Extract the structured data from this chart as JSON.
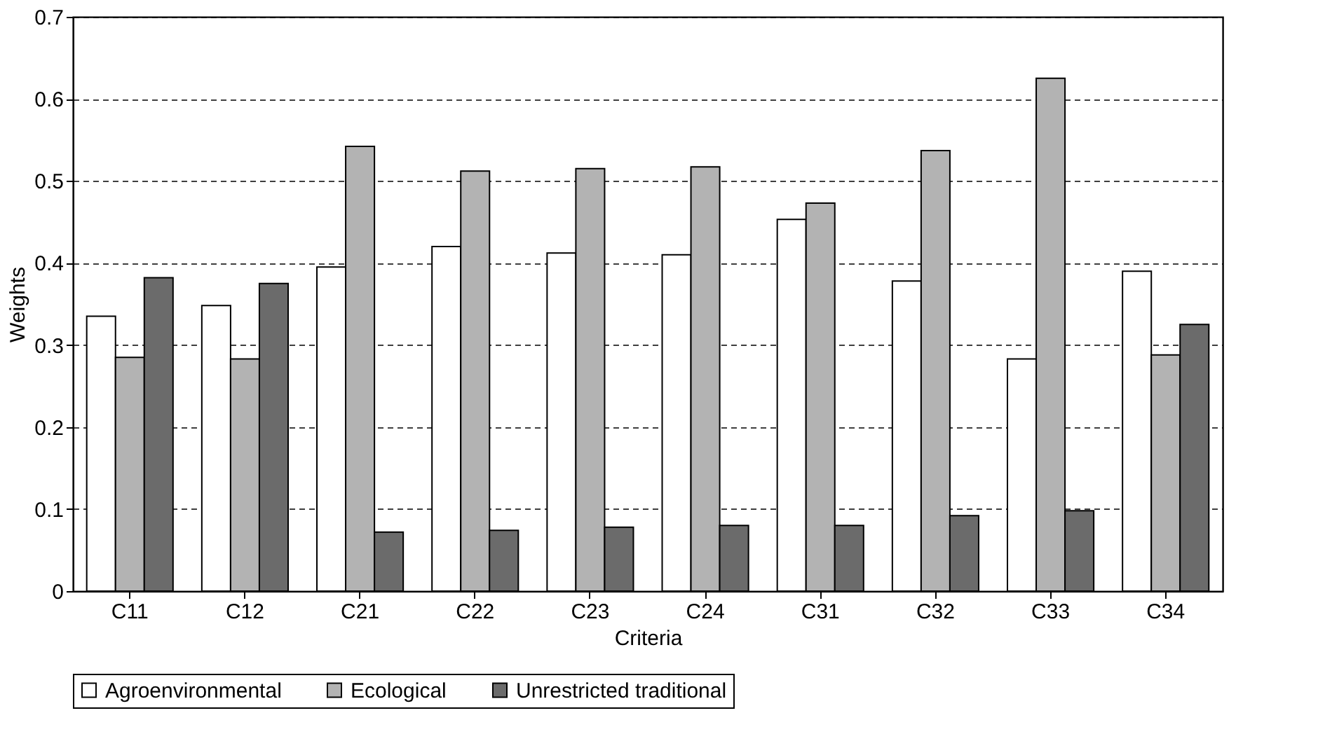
{
  "chart_data": {
    "type": "bar",
    "xlabel": "Criteria",
    "ylabel": "Weights",
    "categories": [
      "C11",
      "C12",
      "C21",
      "C22",
      "C23",
      "C24",
      "C31",
      "C32",
      "C33",
      "C34"
    ],
    "series": [
      {
        "name": "Agroenvironmental",
        "color": "#ffffff",
        "values": [
          0.335,
          0.348,
          0.395,
          0.42,
          0.412,
          0.41,
          0.453,
          0.378,
          0.283,
          0.39
        ]
      },
      {
        "name": "Ecological",
        "color": "#b3b3b3",
        "values": [
          0.285,
          0.283,
          0.542,
          0.512,
          0.515,
          0.517,
          0.473,
          0.537,
          0.625,
          0.288
        ]
      },
      {
        "name": "Unrestricted traditional",
        "color": "#6b6b6b",
        "values": [
          0.382,
          0.375,
          0.072,
          0.074,
          0.078,
          0.08,
          0.08,
          0.092,
          0.098,
          0.325
        ]
      }
    ],
    "ylim": [
      0,
      0.7
    ],
    "yticks": [
      0,
      0.1,
      0.2,
      0.3,
      0.4,
      0.5,
      0.6,
      0.7
    ],
    "grid": "y",
    "legend": "bottom"
  }
}
